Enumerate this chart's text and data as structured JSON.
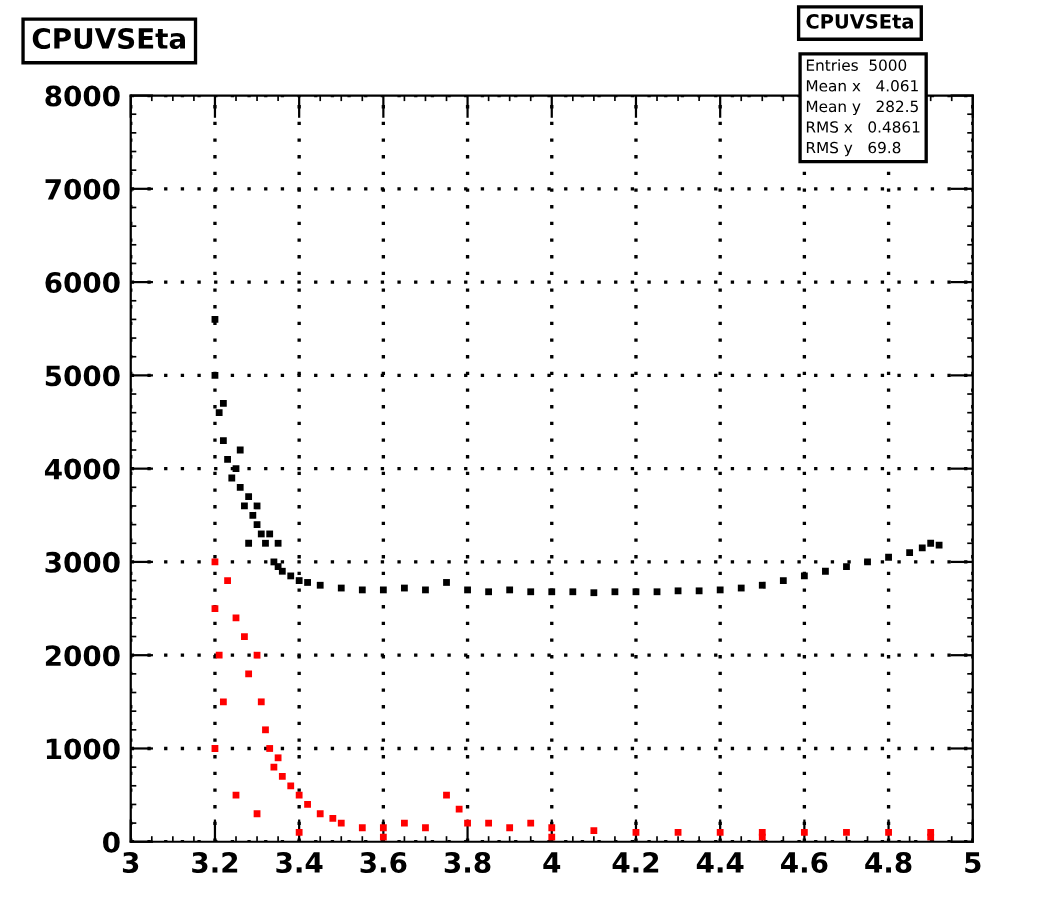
{
  "chart_data": {
    "type": "scatter",
    "title": "CPUVSEta",
    "annotations": [
      "CPUVSEta",
      "Entries  5000",
      "Mean x   4.061",
      "Mean y   282.5",
      "RMS x   0.4861",
      "RMS y   69.8"
    ],
    "xlim": [
      3,
      5
    ],
    "xticks": [
      3,
      3.2,
      3.4,
      3.6,
      3.8,
      4,
      4.2,
      4.4,
      4.6,
      4.8,
      5
    ],
    "ylim": [
      0,
      8000
    ],
    "yticks": [
      0,
      1000,
      2000,
      3000,
      4000,
      5000,
      6000,
      7000,
      8000
    ],
    "grid": true,
    "marker": "square",
    "series": [
      {
        "color": "#000000",
        "x": [
          3.2,
          3.2,
          3.21,
          3.22,
          3.22,
          3.23,
          3.24,
          3.25,
          3.26,
          3.26,
          3.27,
          3.28,
          3.28,
          3.29,
          3.3,
          3.3,
          3.31,
          3.32,
          3.33,
          3.34,
          3.35,
          3.35,
          3.36,
          3.38,
          3.4,
          3.42,
          3.45,
          3.5,
          3.55,
          3.6,
          3.65,
          3.7,
          3.75,
          3.8,
          3.85,
          3.9,
          3.95,
          4.0,
          4.05,
          4.1,
          4.15,
          4.2,
          4.25,
          4.3,
          4.35,
          4.4,
          4.45,
          4.5,
          4.55,
          4.6,
          4.65,
          4.7,
          4.75,
          4.8,
          4.85,
          4.88,
          4.9,
          4.92
        ],
        "values": [
          5600,
          5000,
          4600,
          4300,
          4700,
          4100,
          3900,
          4000,
          3800,
          4200,
          3600,
          3700,
          3200,
          3500,
          3400,
          3600,
          3300,
          3200,
          3300,
          3000,
          2950,
          3200,
          2900,
          2850,
          2800,
          2780,
          2750,
          2720,
          2700,
          2700,
          2720,
          2700,
          2780,
          2700,
          2680,
          2700,
          2680,
          2680,
          2680,
          2670,
          2680,
          2680,
          2680,
          2690,
          2690,
          2700,
          2720,
          2750,
          2800,
          2850,
          2900,
          2950,
          3000,
          3050,
          3100,
          3150,
          3200,
          3180
        ]
      },
      {
        "color": "#ff0000",
        "x": [
          3.2,
          3.2,
          3.21,
          3.22,
          3.2,
          3.23,
          3.25,
          3.27,
          3.28,
          3.3,
          3.31,
          3.32,
          3.33,
          3.34,
          3.35,
          3.36,
          3.38,
          3.4,
          3.42,
          3.45,
          3.48,
          3.5,
          3.55,
          3.6,
          3.65,
          3.7,
          3.75,
          3.78,
          3.8,
          3.85,
          3.9,
          3.95,
          4.0,
          4.1,
          4.2,
          4.3,
          4.4,
          4.5,
          4.6,
          4.7,
          4.8,
          4.9,
          3.3,
          3.25,
          3.4,
          3.6,
          4.0,
          4.5,
          4.9
        ],
        "values": [
          3000,
          2500,
          2000,
          1500,
          1000,
          2800,
          2400,
          2200,
          1800,
          2000,
          1500,
          1200,
          1000,
          800,
          900,
          700,
          600,
          500,
          400,
          300,
          250,
          200,
          150,
          150,
          200,
          150,
          500,
          350,
          200,
          200,
          150,
          200,
          150,
          120,
          100,
          100,
          100,
          100,
          100,
          100,
          100,
          100,
          300,
          500,
          100,
          50,
          50,
          50,
          50
        ]
      }
    ]
  }
}
